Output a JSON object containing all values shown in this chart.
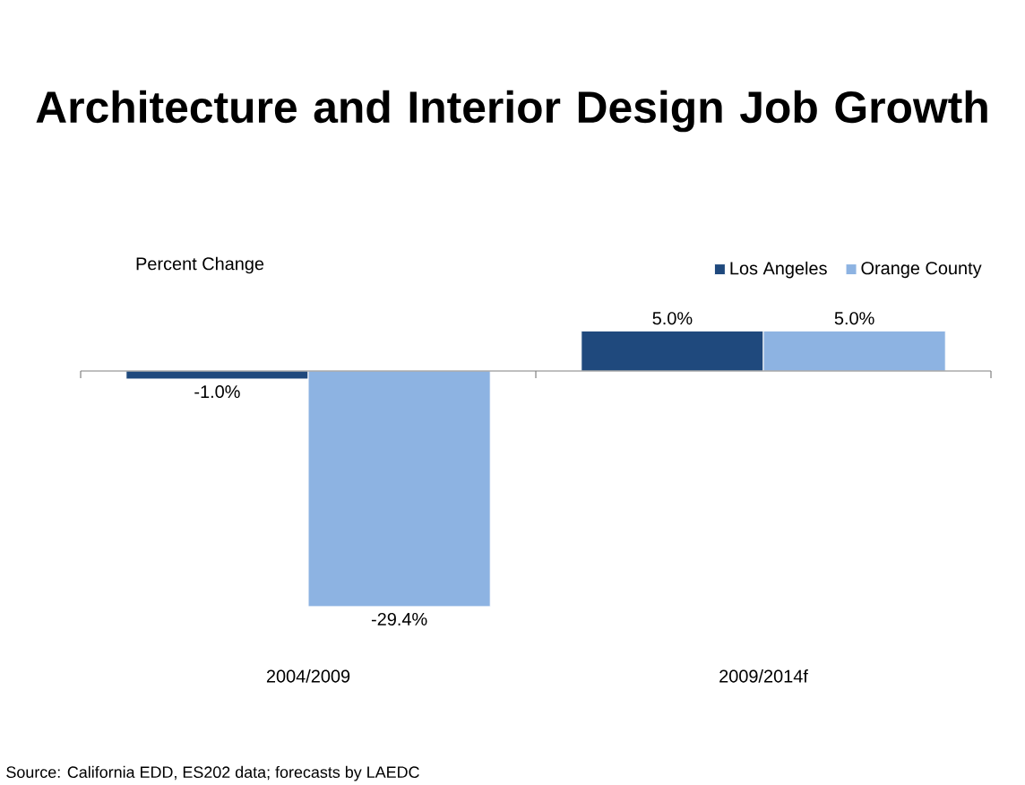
{
  "chart_data": {
    "type": "bar",
    "title": "Architecture and Interior Design Job Growth",
    "ylabel": "Percent Change",
    "categories": [
      "2004/2009",
      "2009/2014f"
    ],
    "series": [
      {
        "name": "Los Angeles",
        "color": "#1f497d",
        "values": [
          -1.0,
          5.0
        ],
        "value_labels": [
          "-1.0%",
          "5.0%"
        ]
      },
      {
        "name": "Orange County",
        "color": "#8db3e2",
        "values": [
          -29.4,
          5.0
        ],
        "value_labels": [
          "-29.4%",
          "5.0%"
        ]
      }
    ],
    "legend": "top right",
    "annotations": [
      "Source: California EDD, ES202 data; forecasts by LAEDC"
    ]
  }
}
